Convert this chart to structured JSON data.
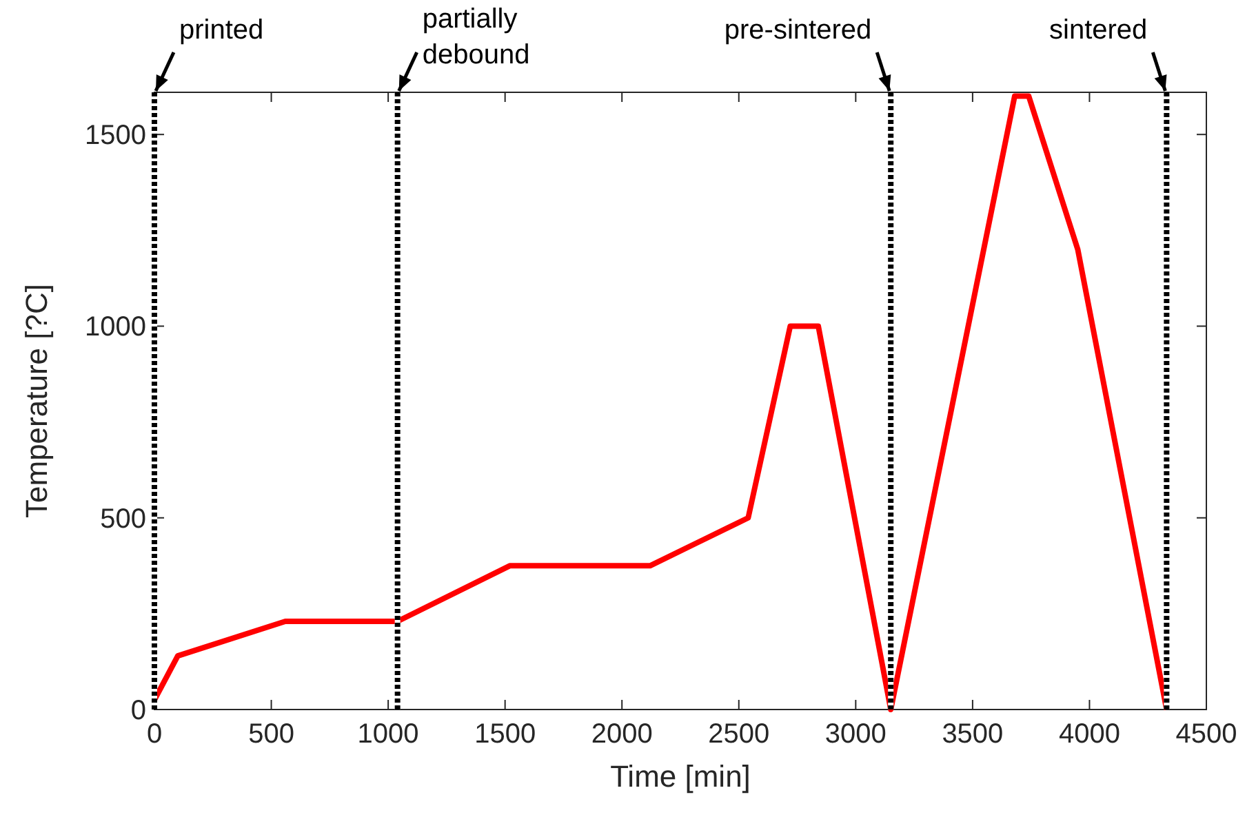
{
  "chart_data": {
    "type": "line",
    "xlabel": "Time [min]",
    "ylabel": "Temperature [?C]",
    "xlim": [
      0,
      4500
    ],
    "xticks": [
      0,
      500,
      1000,
      1500,
      2000,
      2500,
      3000,
      3500,
      4000,
      4500
    ],
    "ylim": [
      0,
      1610
    ],
    "yticks": [
      0,
      500,
      1000,
      1500
    ],
    "series": [
      {
        "color": "#ff0000",
        "x": [
          0,
          100,
          560,
          1040,
          1520,
          2120,
          2540,
          2720,
          2840,
          3150,
          3680,
          3740,
          3950,
          4330
        ],
        "values": [
          25,
          140,
          230,
          230,
          375,
          375,
          500,
          1000,
          1000,
          0,
          1600,
          1600,
          1200,
          0
        ]
      }
    ],
    "ref_lines": [
      {
        "axis": "x",
        "value": 0,
        "label": "printed",
        "color": "#000000",
        "line_style": "dotted"
      },
      {
        "axis": "x",
        "value": 1040,
        "label": "partially debound",
        "color": "#000000",
        "line_style": "dotted"
      },
      {
        "axis": "x",
        "value": 3150,
        "label": "pre-sintered",
        "color": "#000000",
        "line_style": "dotted"
      },
      {
        "axis": "x",
        "value": 4330,
        "label": "sintered",
        "color": "#000000",
        "line_style": "dotted"
      }
    ]
  }
}
